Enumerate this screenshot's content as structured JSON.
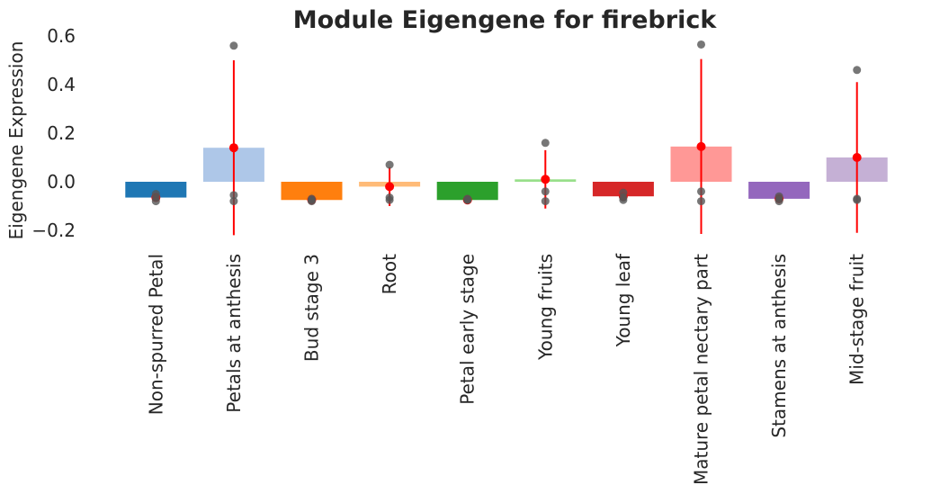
{
  "chart_data": {
    "type": "bar",
    "title": "Module Eigengene for firebrick",
    "xlabel": "",
    "ylabel": "Eigengene Expression",
    "ylim": [
      -0.26,
      0.6
    ],
    "yticks": [
      -0.2,
      0.0,
      0.2,
      0.4,
      0.6
    ],
    "ytick_labels": [
      "−0.2",
      "0.0",
      "0.2",
      "0.4",
      "0.6"
    ],
    "grid": false,
    "legend": "none",
    "categories": [
      "Non-spurred Petal",
      "Petals at anthesis",
      "Bud stage 3",
      "Root",
      "Petal early stage",
      "Young fruits",
      "Young leaf",
      "Mature petal nectary part",
      "Stamens at anthesis",
      "Mid-stage fruit"
    ],
    "values": [
      -0.065,
      0.14,
      -0.075,
      -0.02,
      -0.075,
      0.01,
      -0.06,
      0.145,
      -0.07,
      0.1
    ],
    "errors": [
      0.01,
      0.36,
      0.005,
      0.08,
      0.003,
      0.12,
      0.015,
      0.36,
      0.01,
      0.31
    ],
    "points": [
      [
        -0.05,
        -0.065,
        -0.08
      ],
      [
        0.56,
        -0.055,
        -0.08
      ],
      [
        -0.07,
        -0.075,
        -0.08
      ],
      [
        0.07,
        -0.065,
        -0.075
      ],
      [
        -0.07,
        -0.075,
        -0.075
      ],
      [
        0.16,
        -0.04,
        -0.08
      ],
      [
        -0.045,
        -0.065,
        -0.075
      ],
      [
        0.565,
        -0.04,
        -0.08
      ],
      [
        -0.06,
        -0.07,
        -0.08
      ],
      [
        0.46,
        -0.07,
        -0.075
      ]
    ],
    "colors": [
      "#1f77b4",
      "#aec7e8",
      "#ff7f0e",
      "#ffbb78",
      "#2ca02c",
      "#98df8a",
      "#d62728",
      "#ff9896",
      "#9467bd",
      "#c5b0d5"
    ],
    "mean_color": "#ff0000",
    "point_color": "#555555"
  }
}
